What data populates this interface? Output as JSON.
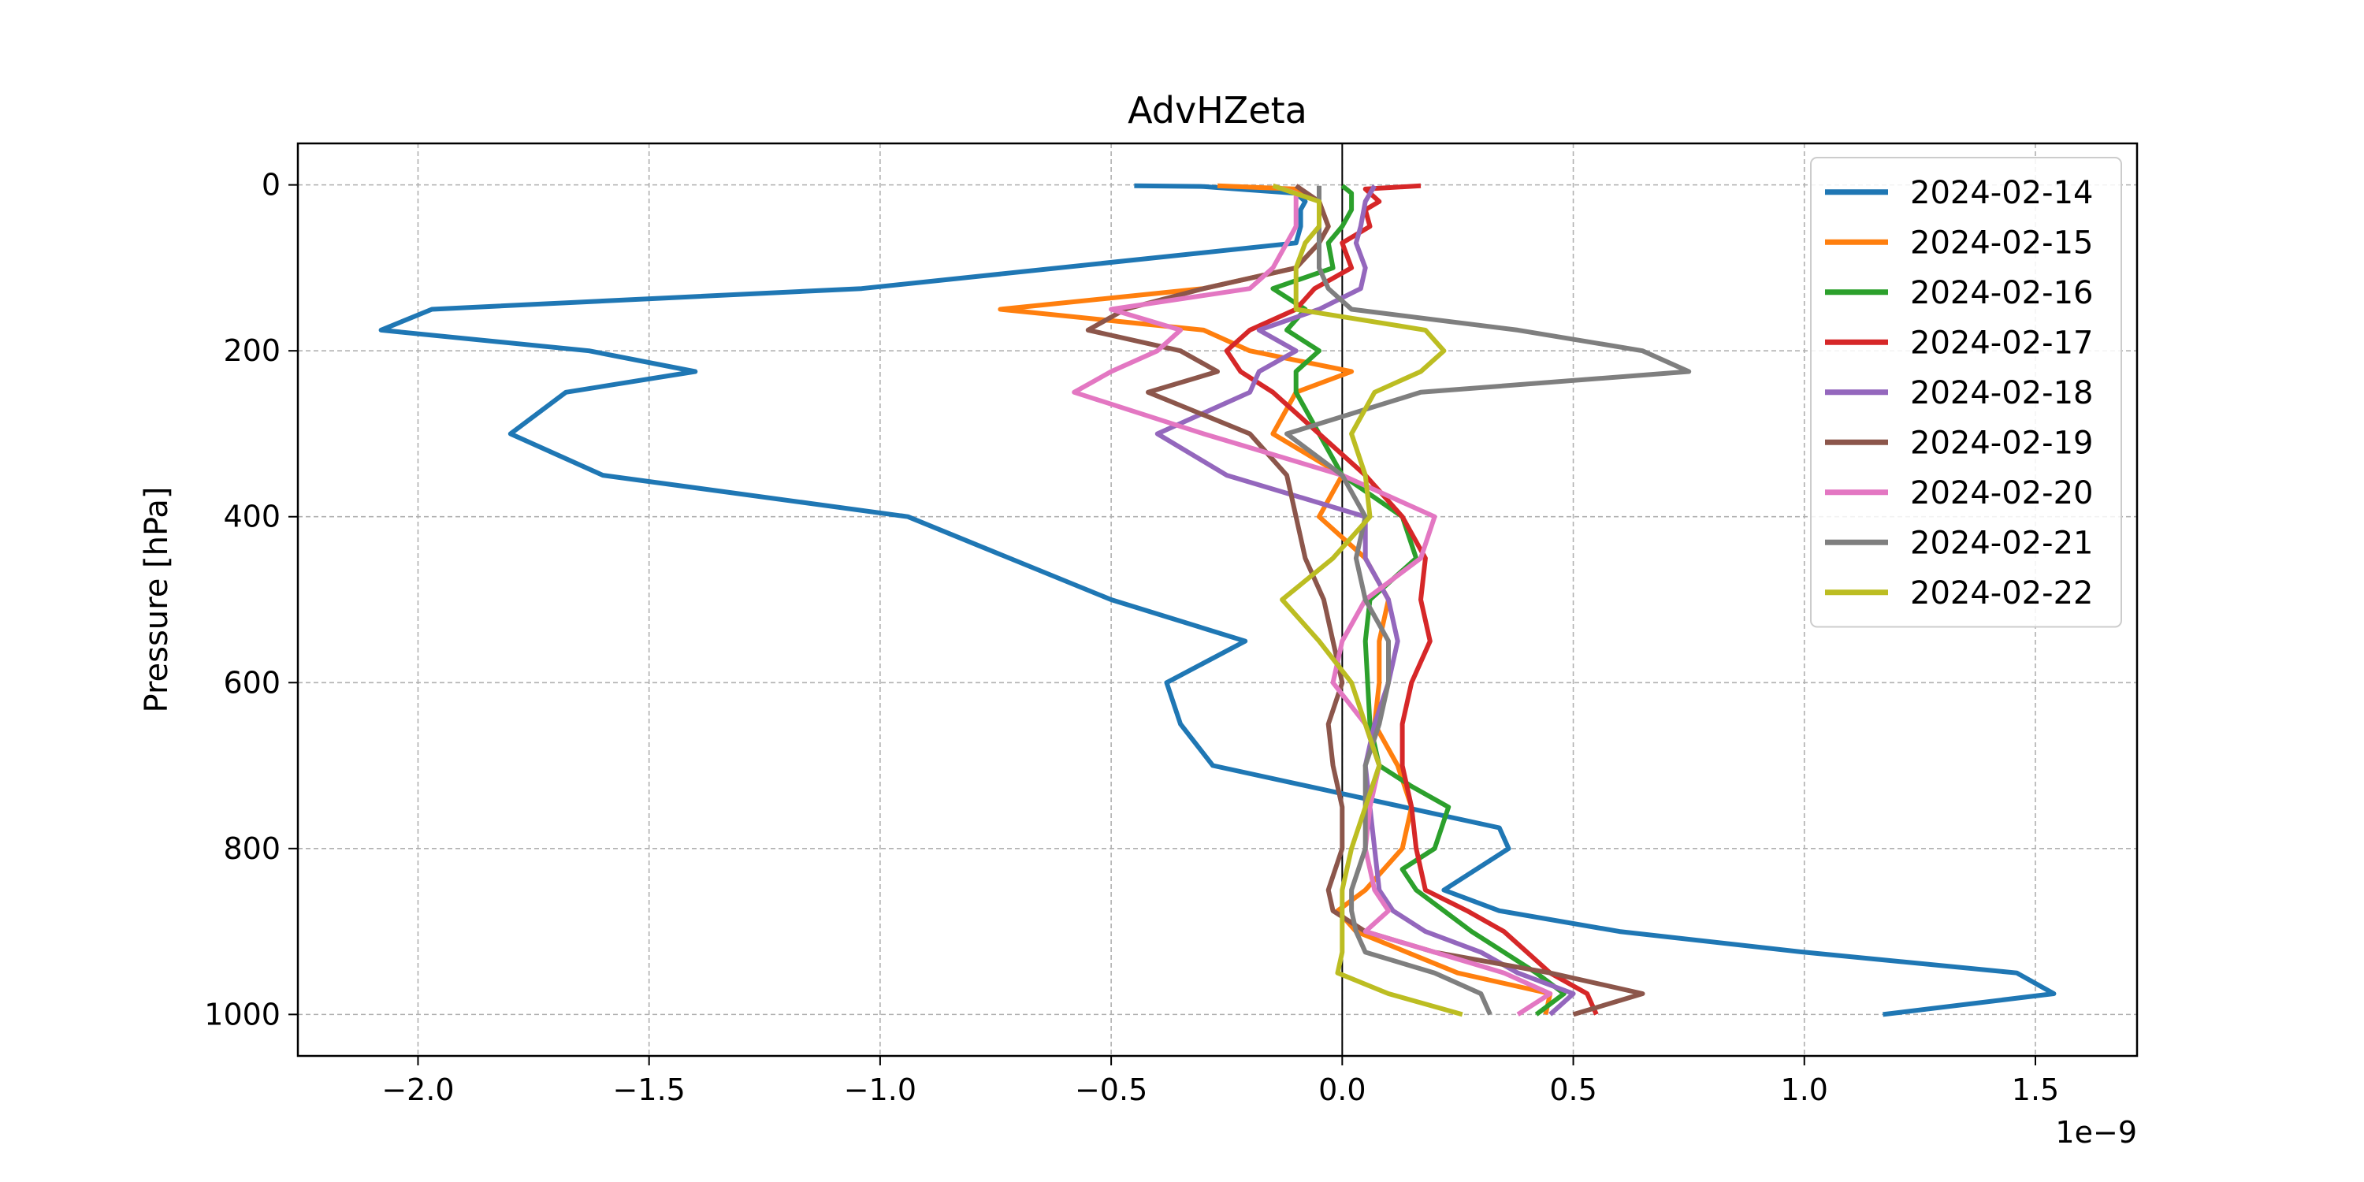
{
  "chart_data": {
    "type": "line",
    "title": "AdvHZeta",
    "xlabel": "",
    "ylabel": "Pressure [hPa]",
    "x_offset_label": "1e−9",
    "xlim": [
      -2.26,
      1.72
    ],
    "ylim": [
      1050,
      -50
    ],
    "y_inverted": true,
    "grid": true,
    "zero_line": true,
    "legend_position": "top-right",
    "xticks": [
      {
        "value": -2.0,
        "label": "−2.0"
      },
      {
        "value": -1.5,
        "label": "−1.5"
      },
      {
        "value": -1.0,
        "label": "−1.0"
      },
      {
        "value": -0.5,
        "label": "−0.5"
      },
      {
        "value": 0.0,
        "label": "0.0"
      },
      {
        "value": 0.5,
        "label": "0.5"
      },
      {
        "value": 1.0,
        "label": "1.0"
      },
      {
        "value": 1.5,
        "label": "1.5"
      }
    ],
    "yticks": [
      {
        "value": 0,
        "label": "0"
      },
      {
        "value": 200,
        "label": "200"
      },
      {
        "value": 400,
        "label": "400"
      },
      {
        "value": 600,
        "label": "600"
      },
      {
        "value": 800,
        "label": "800"
      },
      {
        "value": 1000,
        "label": "1000"
      }
    ],
    "series": [
      {
        "name": "2024-02-14",
        "color": "#1f77b4",
        "points": [
          [
            -0.45,
            1
          ],
          [
            -0.3,
            2
          ],
          [
            -0.1,
            10
          ],
          [
            -0.08,
            20
          ],
          [
            -0.09,
            30
          ],
          [
            -0.09,
            50
          ],
          [
            -0.1,
            70
          ],
          [
            -1.04,
            125
          ],
          [
            -1.97,
            150
          ],
          [
            -2.08,
            175
          ],
          [
            -1.63,
            200
          ],
          [
            -1.4,
            225
          ],
          [
            -1.68,
            250
          ],
          [
            -1.8,
            300
          ],
          [
            -1.6,
            350
          ],
          [
            -0.94,
            400
          ],
          [
            -0.5,
            500
          ],
          [
            -0.21,
            550
          ],
          [
            -0.38,
            600
          ],
          [
            -0.35,
            650
          ],
          [
            -0.28,
            700
          ],
          [
            0.34,
            775
          ],
          [
            0.36,
            800
          ],
          [
            0.22,
            850
          ],
          [
            0.34,
            875
          ],
          [
            0.6,
            900
          ],
          [
            1.0,
            925
          ],
          [
            1.46,
            950
          ],
          [
            1.54,
            975
          ],
          [
            1.17,
            1000
          ]
        ]
      },
      {
        "name": "2024-02-15",
        "color": "#ff7f0e",
        "points": [
          [
            -0.27,
            1
          ],
          [
            -0.1,
            5
          ],
          [
            -0.05,
            20
          ],
          [
            -0.03,
            50
          ],
          [
            -0.05,
            70
          ],
          [
            -0.1,
            100
          ],
          [
            -0.3,
            125
          ],
          [
            -0.74,
            150
          ],
          [
            -0.3,
            175
          ],
          [
            -0.2,
            200
          ],
          [
            0.02,
            225
          ],
          [
            -0.1,
            250
          ],
          [
            -0.15,
            300
          ],
          [
            0.0,
            350
          ],
          [
            -0.05,
            400
          ],
          [
            0.05,
            450
          ],
          [
            0.1,
            500
          ],
          [
            0.08,
            550
          ],
          [
            0.08,
            600
          ],
          [
            0.07,
            650
          ],
          [
            0.12,
            700
          ],
          [
            0.15,
            750
          ],
          [
            0.13,
            800
          ],
          [
            0.05,
            850
          ],
          [
            -0.01,
            875
          ],
          [
            0.03,
            900
          ],
          [
            0.25,
            950
          ],
          [
            0.45,
            975
          ],
          [
            0.44,
            1000
          ]
        ]
      },
      {
        "name": "2024-02-16",
        "color": "#2ca02c",
        "points": [
          [
            0.0,
            1
          ],
          [
            0.02,
            10
          ],
          [
            0.02,
            30
          ],
          [
            0.0,
            50
          ],
          [
            -0.03,
            70
          ],
          [
            -0.02,
            100
          ],
          [
            -0.15,
            125
          ],
          [
            -0.08,
            150
          ],
          [
            -0.12,
            175
          ],
          [
            -0.05,
            200
          ],
          [
            -0.1,
            225
          ],
          [
            -0.1,
            250
          ],
          [
            -0.05,
            300
          ],
          [
            0.0,
            350
          ],
          [
            0.13,
            400
          ],
          [
            0.16,
            450
          ],
          [
            0.06,
            500
          ],
          [
            0.05,
            550
          ],
          [
            0.06,
            650
          ],
          [
            0.08,
            700
          ],
          [
            0.15,
            725
          ],
          [
            0.23,
            750
          ],
          [
            0.2,
            800
          ],
          [
            0.13,
            825
          ],
          [
            0.16,
            850
          ],
          [
            0.22,
            875
          ],
          [
            0.28,
            900
          ],
          [
            0.35,
            925
          ],
          [
            0.42,
            950
          ],
          [
            0.48,
            975
          ],
          [
            0.42,
            1000
          ]
        ]
      },
      {
        "name": "2024-02-17",
        "color": "#d62728",
        "points": [
          [
            0.17,
            1
          ],
          [
            0.05,
            5
          ],
          [
            0.08,
            20
          ],
          [
            0.05,
            30
          ],
          [
            0.06,
            50
          ],
          [
            0.0,
            70
          ],
          [
            0.02,
            100
          ],
          [
            -0.06,
            125
          ],
          [
            -0.1,
            150
          ],
          [
            -0.2,
            175
          ],
          [
            -0.25,
            200
          ],
          [
            -0.22,
            225
          ],
          [
            -0.15,
            250
          ],
          [
            -0.05,
            300
          ],
          [
            0.05,
            350
          ],
          [
            0.13,
            400
          ],
          [
            0.18,
            450
          ],
          [
            0.17,
            500
          ],
          [
            0.19,
            550
          ],
          [
            0.15,
            600
          ],
          [
            0.13,
            650
          ],
          [
            0.13,
            700
          ],
          [
            0.15,
            750
          ],
          [
            0.16,
            800
          ],
          [
            0.18,
            850
          ],
          [
            0.27,
            875
          ],
          [
            0.35,
            900
          ],
          [
            0.4,
            925
          ],
          [
            0.45,
            950
          ],
          [
            0.53,
            975
          ],
          [
            0.55,
            1000
          ]
        ]
      },
      {
        "name": "2024-02-18",
        "color": "#9467bd",
        "points": [
          [
            0.07,
            1
          ],
          [
            0.05,
            20
          ],
          [
            0.04,
            50
          ],
          [
            0.03,
            70
          ],
          [
            0.05,
            100
          ],
          [
            0.04,
            125
          ],
          [
            -0.05,
            150
          ],
          [
            -0.18,
            175
          ],
          [
            -0.1,
            200
          ],
          [
            -0.18,
            225
          ],
          [
            -0.2,
            250
          ],
          [
            -0.4,
            300
          ],
          [
            -0.25,
            350
          ],
          [
            0.05,
            400
          ],
          [
            0.05,
            450
          ],
          [
            0.1,
            500
          ],
          [
            0.12,
            550
          ],
          [
            0.1,
            600
          ],
          [
            0.07,
            650
          ],
          [
            0.05,
            700
          ],
          [
            0.06,
            750
          ],
          [
            0.07,
            800
          ],
          [
            0.08,
            850
          ],
          [
            0.11,
            875
          ],
          [
            0.18,
            900
          ],
          [
            0.3,
            925
          ],
          [
            0.38,
            950
          ],
          [
            0.5,
            975
          ],
          [
            0.45,
            1000
          ]
        ]
      },
      {
        "name": "2024-02-19",
        "color": "#8c564b",
        "points": [
          [
            -0.1,
            1
          ],
          [
            -0.05,
            20
          ],
          [
            -0.03,
            50
          ],
          [
            -0.05,
            70
          ],
          [
            -0.1,
            100
          ],
          [
            -0.3,
            125
          ],
          [
            -0.47,
            150
          ],
          [
            -0.55,
            175
          ],
          [
            -0.35,
            200
          ],
          [
            -0.27,
            225
          ],
          [
            -0.42,
            250
          ],
          [
            -0.2,
            300
          ],
          [
            -0.12,
            350
          ],
          [
            -0.1,
            400
          ],
          [
            -0.08,
            450
          ],
          [
            -0.04,
            500
          ],
          [
            -0.02,
            550
          ],
          [
            0.0,
            600
          ],
          [
            -0.03,
            650
          ],
          [
            -0.02,
            700
          ],
          [
            0.0,
            750
          ],
          [
            0.0,
            800
          ],
          [
            -0.03,
            850
          ],
          [
            -0.02,
            875
          ],
          [
            0.05,
            900
          ],
          [
            0.2,
            925
          ],
          [
            0.45,
            950
          ],
          [
            0.65,
            975
          ],
          [
            0.5,
            1000
          ]
        ]
      },
      {
        "name": "2024-02-20",
        "color": "#e377c2",
        "points": [
          [
            -0.15,
            1
          ],
          [
            -0.1,
            10
          ],
          [
            -0.1,
            30
          ],
          [
            -0.1,
            50
          ],
          [
            -0.12,
            70
          ],
          [
            -0.15,
            100
          ],
          [
            -0.2,
            125
          ],
          [
            -0.5,
            150
          ],
          [
            -0.35,
            175
          ],
          [
            -0.4,
            200
          ],
          [
            -0.5,
            225
          ],
          [
            -0.58,
            250
          ],
          [
            -0.3,
            300
          ],
          [
            0.0,
            350
          ],
          [
            0.2,
            400
          ],
          [
            0.17,
            450
          ],
          [
            0.05,
            500
          ],
          [
            0.0,
            550
          ],
          [
            -0.02,
            600
          ],
          [
            0.05,
            650
          ],
          [
            0.08,
            700
          ],
          [
            0.06,
            750
          ],
          [
            0.05,
            800
          ],
          [
            0.07,
            850
          ],
          [
            0.1,
            875
          ],
          [
            0.05,
            900
          ],
          [
            0.2,
            925
          ],
          [
            0.35,
            950
          ],
          [
            0.45,
            975
          ],
          [
            0.38,
            1000
          ]
        ]
      },
      {
        "name": "2024-02-21",
        "color": "#7f7f7f",
        "points": [
          [
            -0.05,
            1
          ],
          [
            -0.05,
            20
          ],
          [
            -0.05,
            50
          ],
          [
            -0.05,
            70
          ],
          [
            -0.05,
            100
          ],
          [
            -0.03,
            125
          ],
          [
            0.02,
            150
          ],
          [
            0.38,
            175
          ],
          [
            0.65,
            200
          ],
          [
            0.75,
            225
          ],
          [
            0.17,
            250
          ],
          [
            -0.12,
            300
          ],
          [
            0.0,
            350
          ],
          [
            0.05,
            400
          ],
          [
            0.03,
            450
          ],
          [
            0.05,
            500
          ],
          [
            0.1,
            550
          ],
          [
            0.1,
            600
          ],
          [
            0.08,
            650
          ],
          [
            0.05,
            700
          ],
          [
            0.05,
            750
          ],
          [
            0.05,
            800
          ],
          [
            0.02,
            850
          ],
          [
            0.02,
            875
          ],
          [
            0.03,
            900
          ],
          [
            0.05,
            925
          ],
          [
            0.2,
            950
          ],
          [
            0.3,
            975
          ],
          [
            0.32,
            1000
          ]
        ]
      },
      {
        "name": "2024-02-22",
        "color": "#bcbd22",
        "points": [
          [
            -0.15,
            1
          ],
          [
            -0.05,
            20
          ],
          [
            -0.05,
            50
          ],
          [
            -0.08,
            70
          ],
          [
            -0.1,
            100
          ],
          [
            -0.1,
            125
          ],
          [
            -0.1,
            150
          ],
          [
            0.18,
            175
          ],
          [
            0.22,
            200
          ],
          [
            0.17,
            225
          ],
          [
            0.07,
            250
          ],
          [
            0.02,
            300
          ],
          [
            0.05,
            350
          ],
          [
            0.06,
            400
          ],
          [
            -0.02,
            450
          ],
          [
            -0.13,
            500
          ],
          [
            -0.05,
            550
          ],
          [
            0.02,
            600
          ],
          [
            0.05,
            650
          ],
          [
            0.08,
            700
          ],
          [
            0.05,
            750
          ],
          [
            0.02,
            800
          ],
          [
            0.0,
            850
          ],
          [
            0.0,
            900
          ],
          [
            0.0,
            925
          ],
          [
            -0.01,
            950
          ],
          [
            0.1,
            975
          ],
          [
            0.26,
            1000
          ]
        ]
      }
    ]
  }
}
